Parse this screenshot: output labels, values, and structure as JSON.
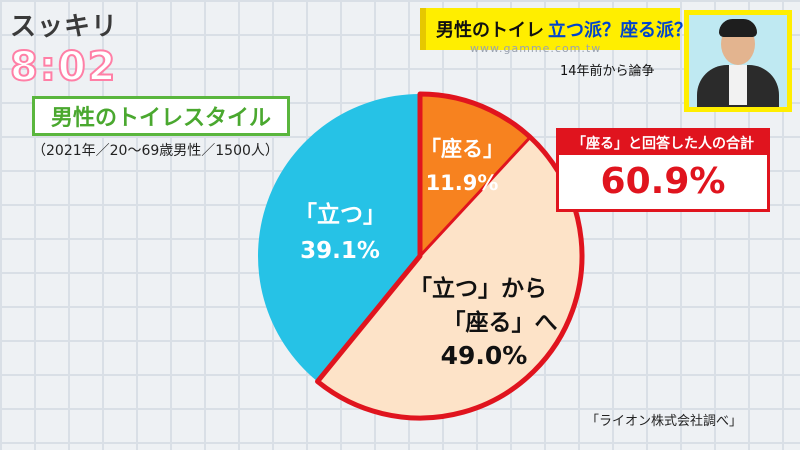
{
  "program": {
    "logo": "スッキリ",
    "clock": "8:02"
  },
  "topic": {
    "part1": "男性のトイレ",
    "part2": "立つ派？座る派？"
  },
  "watermark": "www.gamme.com.tw",
  "subtitle": "14年前から論争",
  "chart_title": "男性のトイレスタイル",
  "survey_note": "（2021年／20～69歳男性／1500人）",
  "callout": {
    "heading": "「座る」と回答した人の合計",
    "value": "60.9%"
  },
  "source": "「ライオン株式会社調べ」",
  "colors": {
    "sit": "#f7821f",
    "stand_to_sit": "#fde3c8",
    "stand": "#26c2e6",
    "highlight": "#e0141e",
    "title_green": "#4aa82f",
    "topic_yellow": "#ffee00"
  },
  "chart_data": {
    "type": "pie",
    "title": "男性のトイレスタイル",
    "slices": [
      {
        "label": "「座る」",
        "value": 11.9,
        "value_label": "11.9%"
      },
      {
        "label": "「立つ」から「座る」へ",
        "label_lines": [
          "「立つ」から",
          "「座る」へ"
        ],
        "value": 49.0,
        "value_label": "49.0%"
      },
      {
        "label": "「立つ」",
        "value": 39.1,
        "value_label": "39.1%"
      }
    ]
  }
}
